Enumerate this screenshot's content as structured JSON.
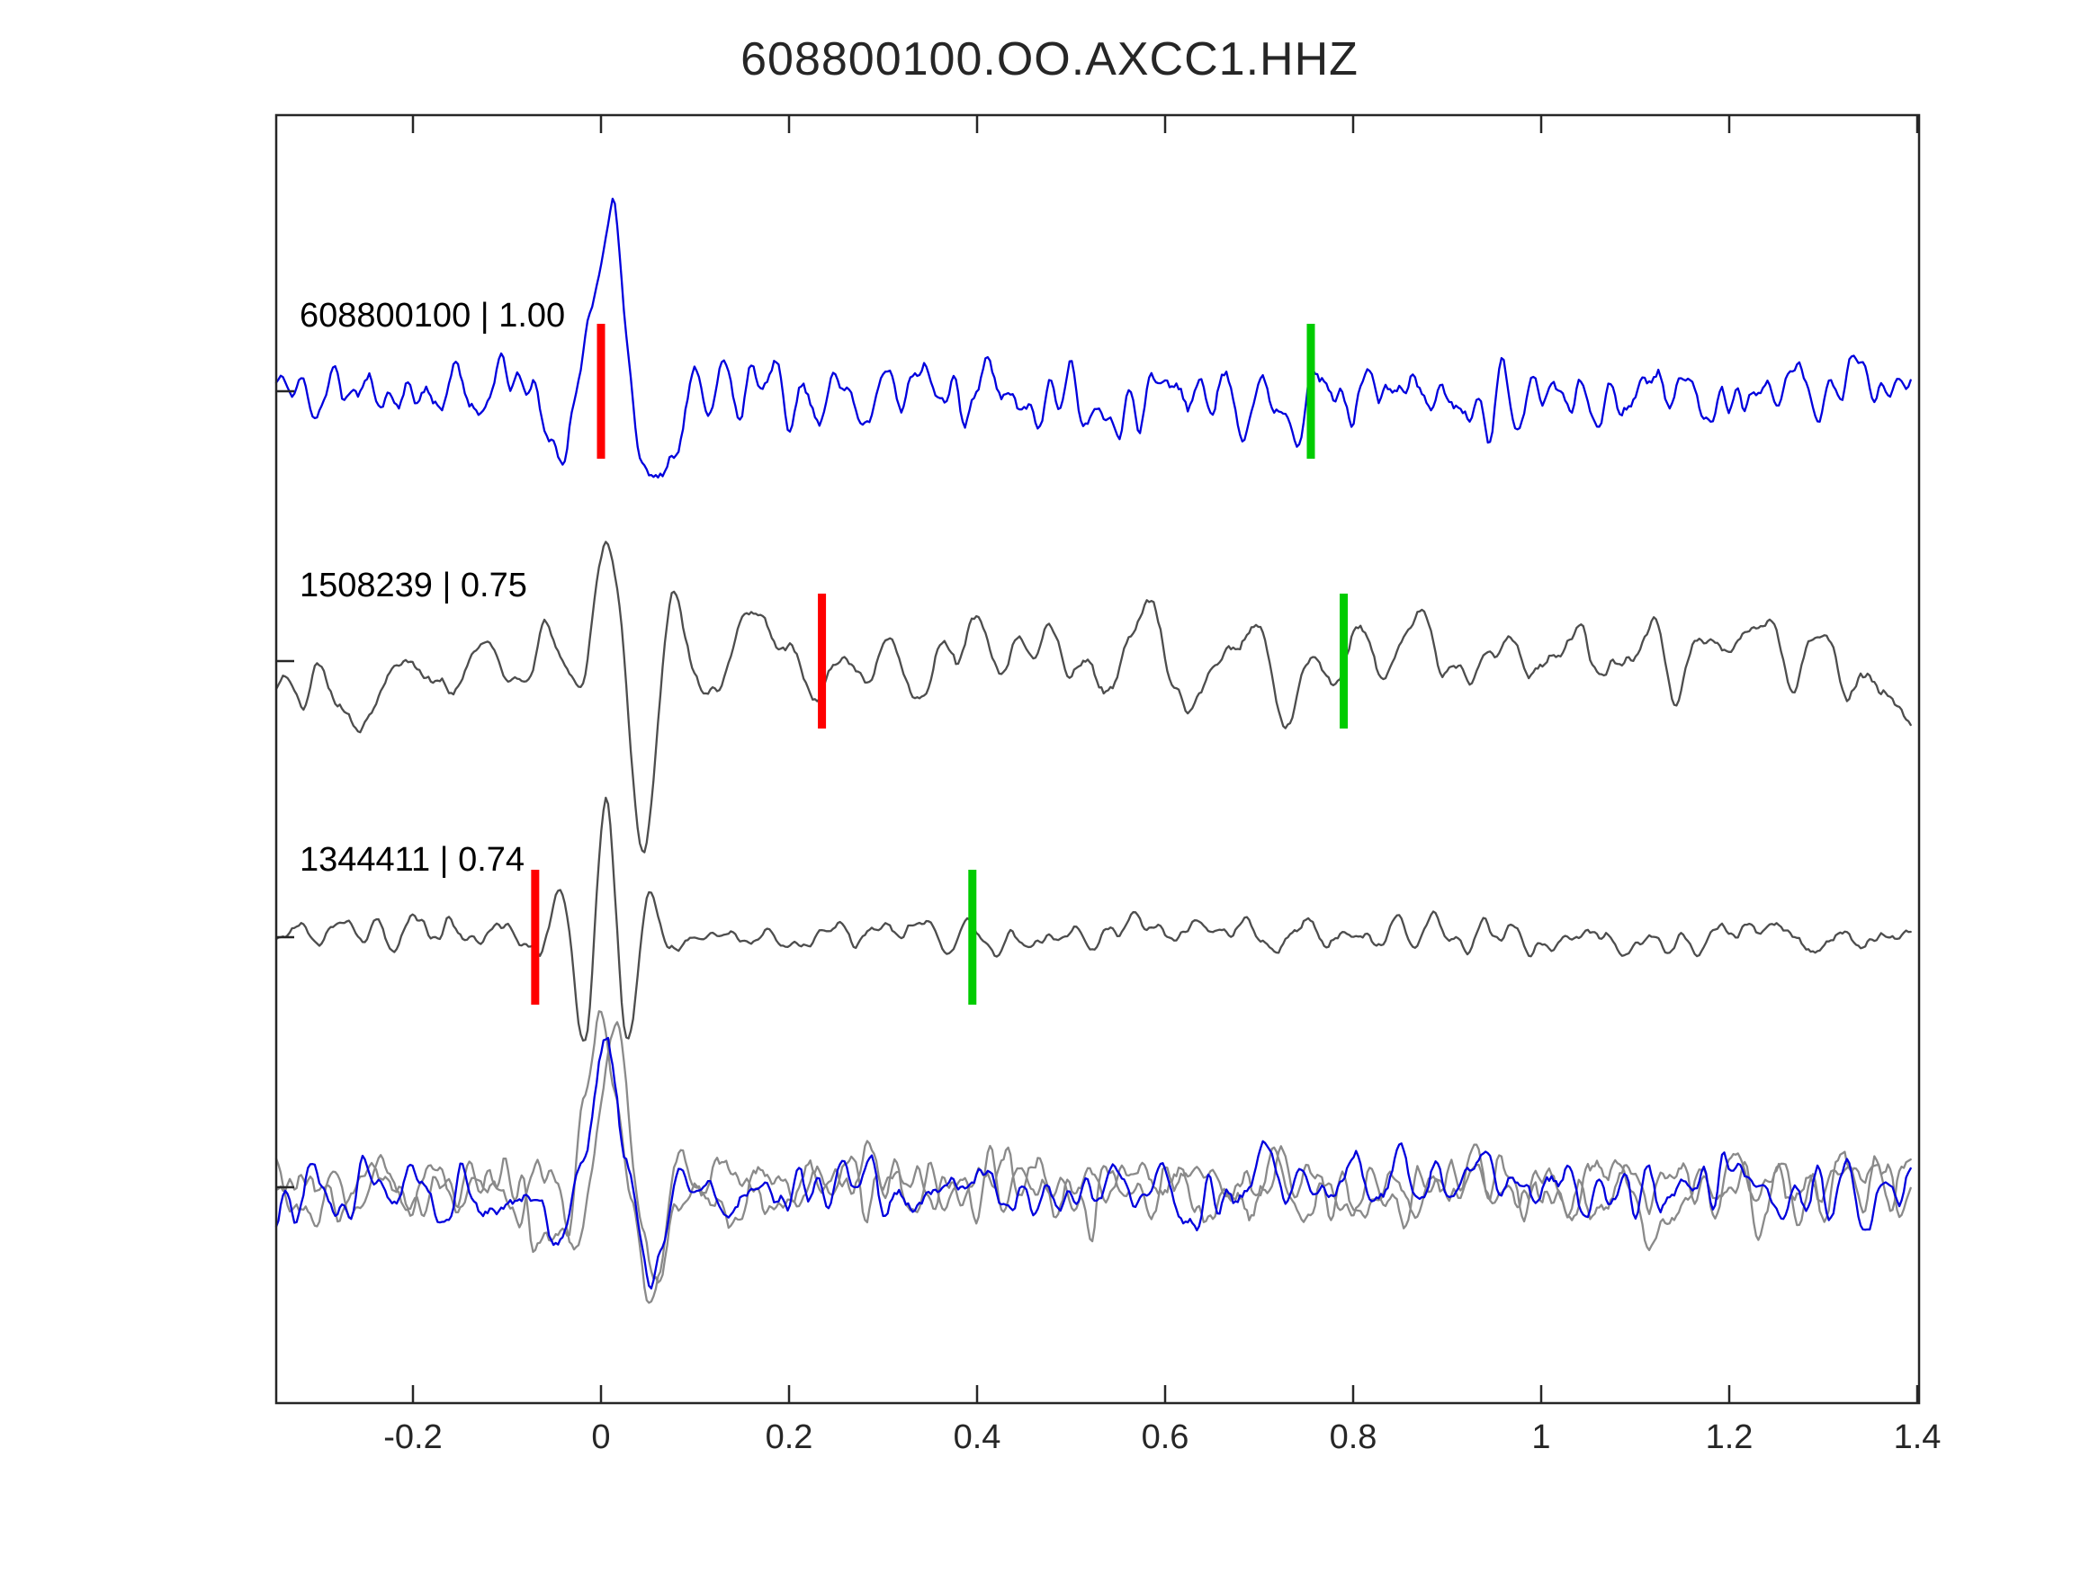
{
  "chart_data": {
    "type": "line",
    "title": "608800100.OO.AXCC1.HHZ",
    "xlabel": "",
    "ylabel": "",
    "x_range": [
      -0.3455,
      1.393
    ],
    "grid": false,
    "legend": null,
    "x_ticks": [
      {
        "value": -0.2,
        "label": "-0.2"
      },
      {
        "value": 0.0,
        "label": "0"
      },
      {
        "value": 0.2,
        "label": "0.2"
      },
      {
        "value": 0.4,
        "label": "0.4"
      },
      {
        "value": 0.6,
        "label": "0.6"
      },
      {
        "value": 0.8,
        "label": "0.8"
      },
      {
        "value": 1.0,
        "label": "1"
      },
      {
        "value": 1.2,
        "label": "1.2"
      },
      {
        "value": 1.4,
        "label": "1.4"
      }
    ],
    "colors": {
      "template": "#0000dd",
      "candidate": "#4d4d4d",
      "overlay_gray": "#8a8a8a",
      "pick_red": "#ff0000",
      "pick_green": "#00cc00",
      "axis": "#262626"
    },
    "traces": [
      {
        "name": "608800100",
        "correlation": 1.0,
        "label": "608800100 | 1.00",
        "color_key": "template",
        "row": 0,
        "picks": {
          "red": 0.0,
          "green": 0.755
        },
        "synthesis": {
          "seed": 11,
          "noise_amp": 40,
          "smooth": 2,
          "wavelet": {
            "amp": 180,
            "t0": 0.015,
            "tau": 0.06,
            "period": 0.12,
            "phase": 2.04
          }
        }
      },
      {
        "name": "1508239",
        "correlation": 0.75,
        "label": "1508239 | 0.75",
        "color_key": "candidate",
        "row": 1,
        "picks": {
          "red": 0.235,
          "green": 0.79
        },
        "synthesis": {
          "seed": 22,
          "noise_amp": 58,
          "smooth": 4,
          "wavelet": {
            "amp": 165,
            "t0": 0.045,
            "tau": 0.06,
            "period": 0.075,
            "phase": -1.5708
          }
        }
      },
      {
        "name": "1344411",
        "correlation": 0.74,
        "label": "1344411 | 0.74",
        "color_key": "candidate",
        "row": 2,
        "picks": {
          "red": -0.07,
          "green": 0.395
        },
        "synthesis": {
          "seed": 33,
          "noise_amp": 20,
          "smooth": 3,
          "wavelet": {
            "amp": 150,
            "t0": 0.005,
            "tau": 0.045,
            "period": 0.05,
            "phase": 1.5708
          }
        }
      }
    ],
    "overlay": [
      {
        "color_key": "overlay_gray",
        "seed": 44,
        "noise_amp": 40,
        "smooth": 3,
        "wavelet": {
          "amp": 150,
          "t0": 0.02,
          "tau": 0.05,
          "period": 0.1,
          "phase": 2.0
        }
      },
      {
        "color_key": "overlay_gray",
        "seed": 55,
        "noise_amp": 40,
        "smooth": 2,
        "wavelet": {
          "amp": 195,
          "t0": 0.01,
          "tau": 0.06,
          "period": 0.11,
          "phase": 2.1
        }
      },
      {
        "color_key": "template",
        "seed": 66,
        "noise_amp": 38,
        "smooth": 2,
        "wavelet": {
          "amp": 145,
          "t0": 0.012,
          "tau": 0.055,
          "period": 0.11,
          "phase": 2.05
        }
      }
    ]
  }
}
